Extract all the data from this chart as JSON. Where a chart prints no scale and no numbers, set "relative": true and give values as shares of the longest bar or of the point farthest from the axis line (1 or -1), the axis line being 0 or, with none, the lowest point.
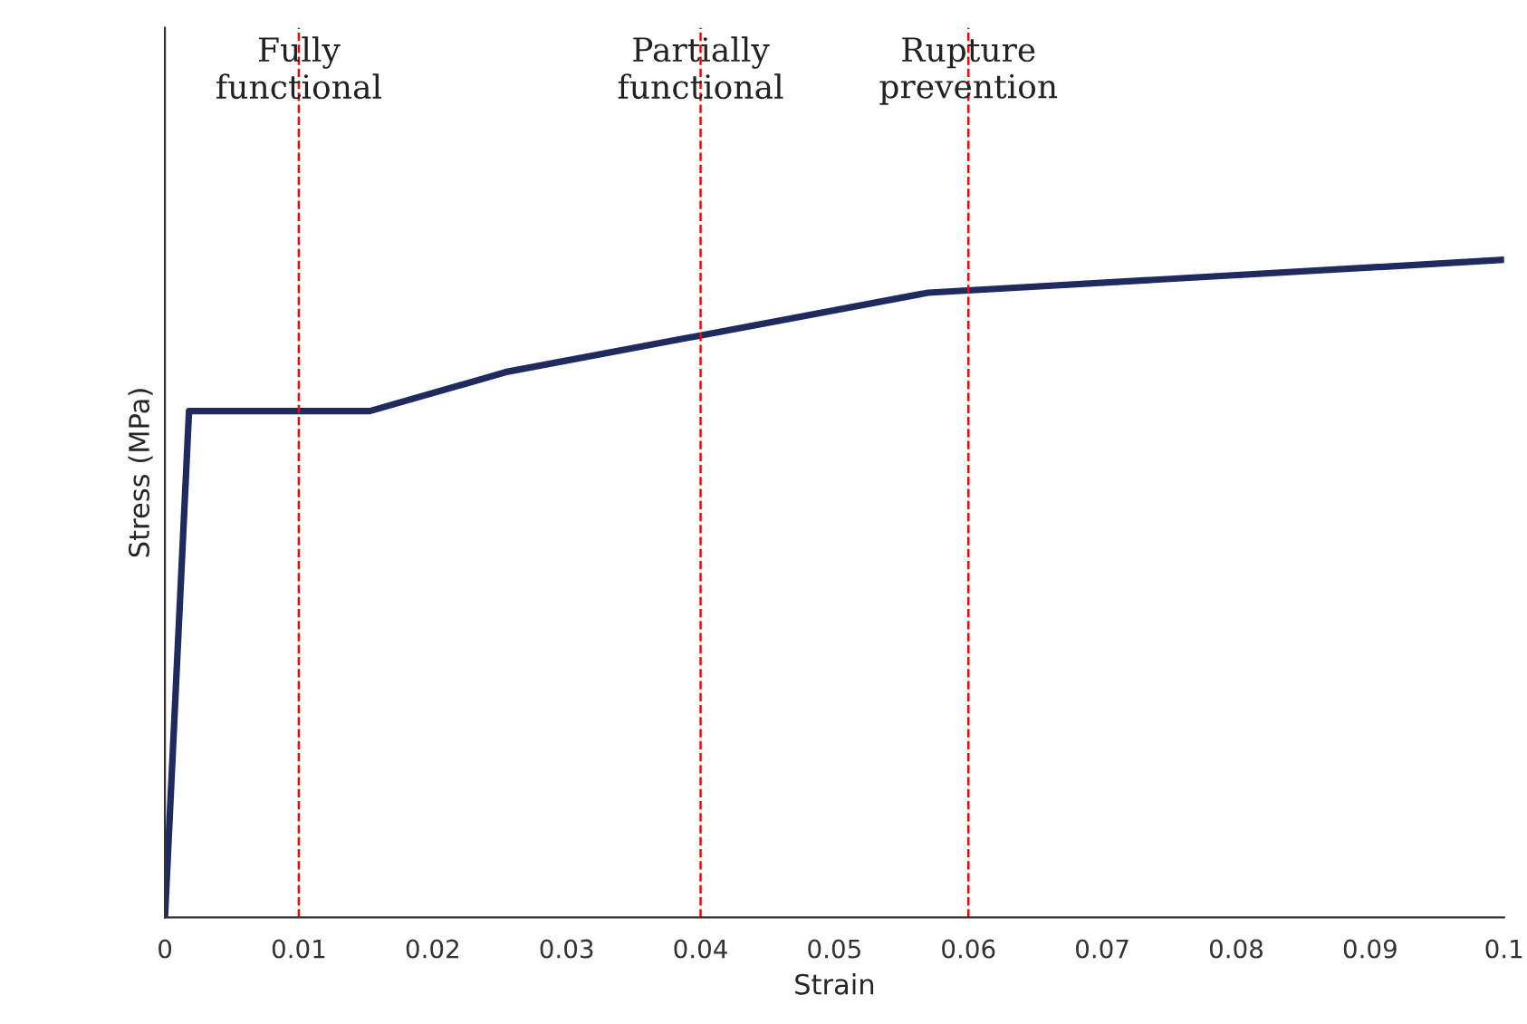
{
  "chart_data": {
    "type": "line",
    "xlabel": "Strain",
    "ylabel": "Stress (MPa)",
    "relative": true,
    "x": [
      0,
      0.0018,
      0.0153,
      0.0256,
      0.057,
      0.1
    ],
    "series": [
      {
        "color": "#1f2a5e",
        "values": [
          0,
          0.77,
          0.77,
          0.83,
          0.95,
          1
        ]
      }
    ],
    "xlim": [
      0,
      0.1
    ],
    "xticks": [
      0,
      0.01,
      0.02,
      0.03,
      0.04,
      0.05,
      0.06,
      0.07,
      0.08,
      0.09,
      0.1
    ],
    "grid": false,
    "legend": false,
    "marker": "none",
    "line_style": "solid",
    "ref_lines": [
      {
        "axis": "x",
        "value": 0.01,
        "label": "Fully\nfunctional",
        "color": "#ff0000",
        "line_style": "dashed"
      },
      {
        "axis": "x",
        "value": 0.04,
        "label": "Partially\nfunctional",
        "color": "#ff0000",
        "line_style": "dashed"
      },
      {
        "axis": "x",
        "value": 0.06,
        "label": "Rupture\nprevention",
        "color": "#ff0000",
        "line_style": "dashed"
      }
    ]
  }
}
